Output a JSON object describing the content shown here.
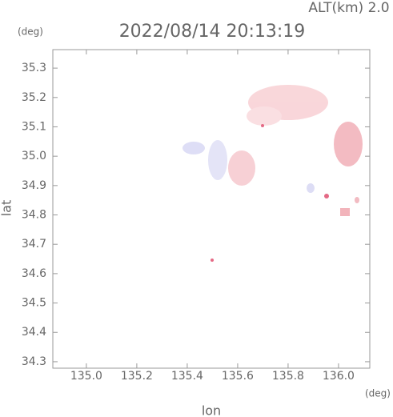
{
  "chart_data": {
    "type": "map",
    "title": "2022/08/14 20:13:19",
    "altitude_label": "ALT(km) 2.0",
    "y_unit": "(deg)",
    "x_unit": "(deg)",
    "x_label": "lon",
    "y_label": "lat",
    "xlim": [
      134.867,
      136.124
    ],
    "ylim": [
      34.278,
      35.363
    ],
    "xticks": [
      {
        "value": 135,
        "label": "135.0"
      },
      135.2,
      135.4,
      135.6,
      135.8,
      {
        "value": 136,
        "label": "136.0"
      }
    ],
    "yticks": [
      34.3,
      34.4,
      34.5,
      34.6,
      34.7,
      34.8,
      34.9,
      {
        "value": 35,
        "label": "35.0"
      },
      35.1,
      35.2,
      35.3
    ],
    "axis_color": "#999999"
  }
}
